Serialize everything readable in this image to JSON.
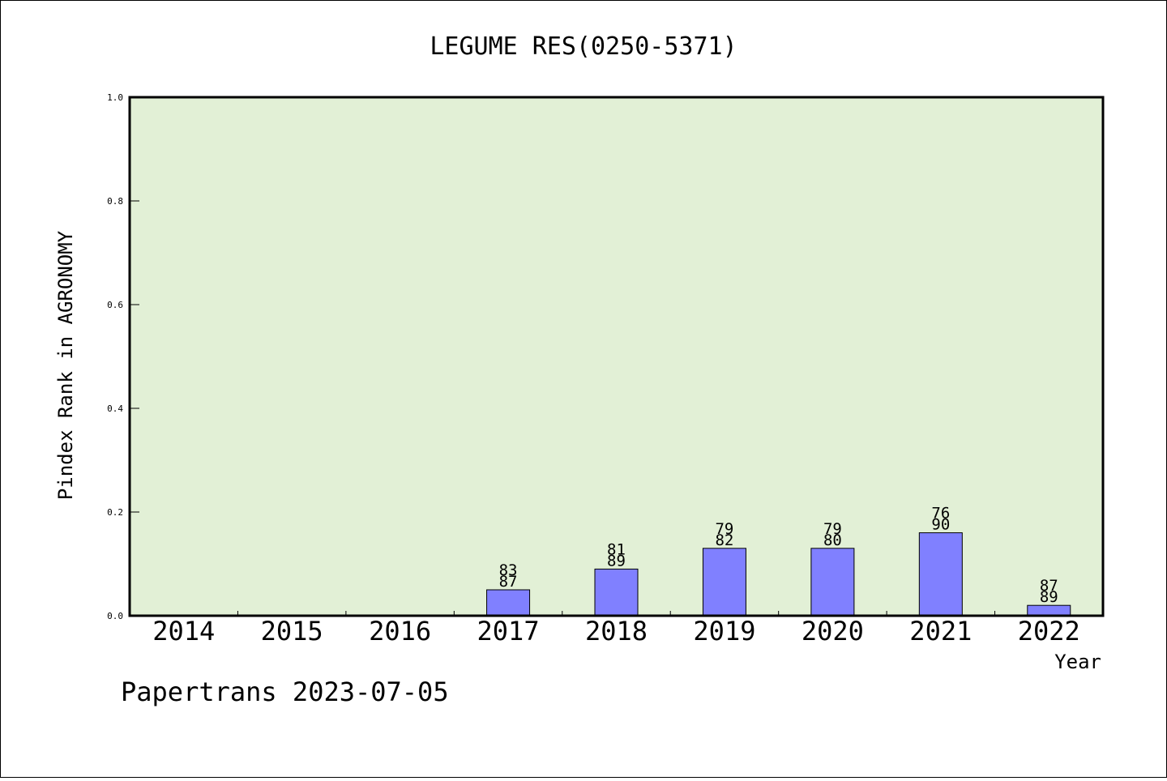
{
  "chart_data": {
    "type": "bar",
    "title": "LEGUME RES(0250-5371)",
    "xlabel": "Year",
    "ylabel": "Pindex Rank in AGRONOMY",
    "categories": [
      "2014",
      "2015",
      "2016",
      "2017",
      "2018",
      "2019",
      "2020",
      "2021",
      "2022"
    ],
    "values": [
      0,
      0,
      0,
      0.05,
      0.09,
      0.13,
      0.13,
      0.16,
      0.02
    ],
    "labels_top": [
      "",
      "",
      "",
      "83",
      "81",
      "79",
      "79",
      "76",
      "87"
    ],
    "labels_bottom": [
      "",
      "",
      "",
      "87",
      "89",
      "82",
      "80",
      "90",
      "89"
    ],
    "ylim": [
      0,
      1.0
    ],
    "yticks": [
      "0.0",
      "0.2",
      "0.4",
      "0.6",
      "0.8",
      "1.0"
    ],
    "grid": false,
    "plot_background": "#e2f0d6",
    "bar_color": "#8080ff"
  },
  "footer": {
    "text": "Papertrans 2023-07-05"
  }
}
